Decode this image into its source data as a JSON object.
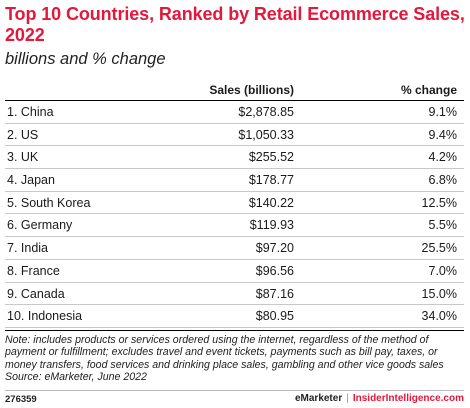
{
  "chart_data": {
    "type": "table",
    "title": "Top 10 Countries, Ranked by Retail Ecommerce Sales, 2022",
    "subtitle": "billions and % change",
    "columns": [
      "",
      "Sales (billions)",
      "% change"
    ],
    "rows": [
      {
        "country": "1. China",
        "sales": "$2,878.85",
        "change": "9.1%"
      },
      {
        "country": "2. US",
        "sales": "$1,050.33",
        "change": "9.4%"
      },
      {
        "country": "3. UK",
        "sales": "$255.52",
        "change": "4.2%"
      },
      {
        "country": "4. Japan",
        "sales": "$178.77",
        "change": "6.8%"
      },
      {
        "country": "5. South Korea",
        "sales": "$140.22",
        "change": "12.5%"
      },
      {
        "country": "6. Germany",
        "sales": "$119.93",
        "change": "5.5%"
      },
      {
        "country": "7. India",
        "sales": "$97.20",
        "change": "25.5%"
      },
      {
        "country": "8. France",
        "sales": "$96.56",
        "change": "7.0%"
      },
      {
        "country": "9. Canada",
        "sales": "$87.16",
        "change": "15.0%"
      },
      {
        "country": "10. Indonesia",
        "sales": "$80.95",
        "change": "34.0%"
      }
    ],
    "note": "Note: includes products or services ordered using the internet, regardless of the method of payment or fulfillment; excludes travel and event tickets, payments such as bill pay, taxes, or money transfers, food services and drinking place sales, gambling and other vice goods sales",
    "source": "Source: eMarketer, June 2022"
  },
  "footer": {
    "chart_id": "276359",
    "brand_left": "eMarketer",
    "separator": "|",
    "brand_right": "InsiderIntelligence.com"
  }
}
